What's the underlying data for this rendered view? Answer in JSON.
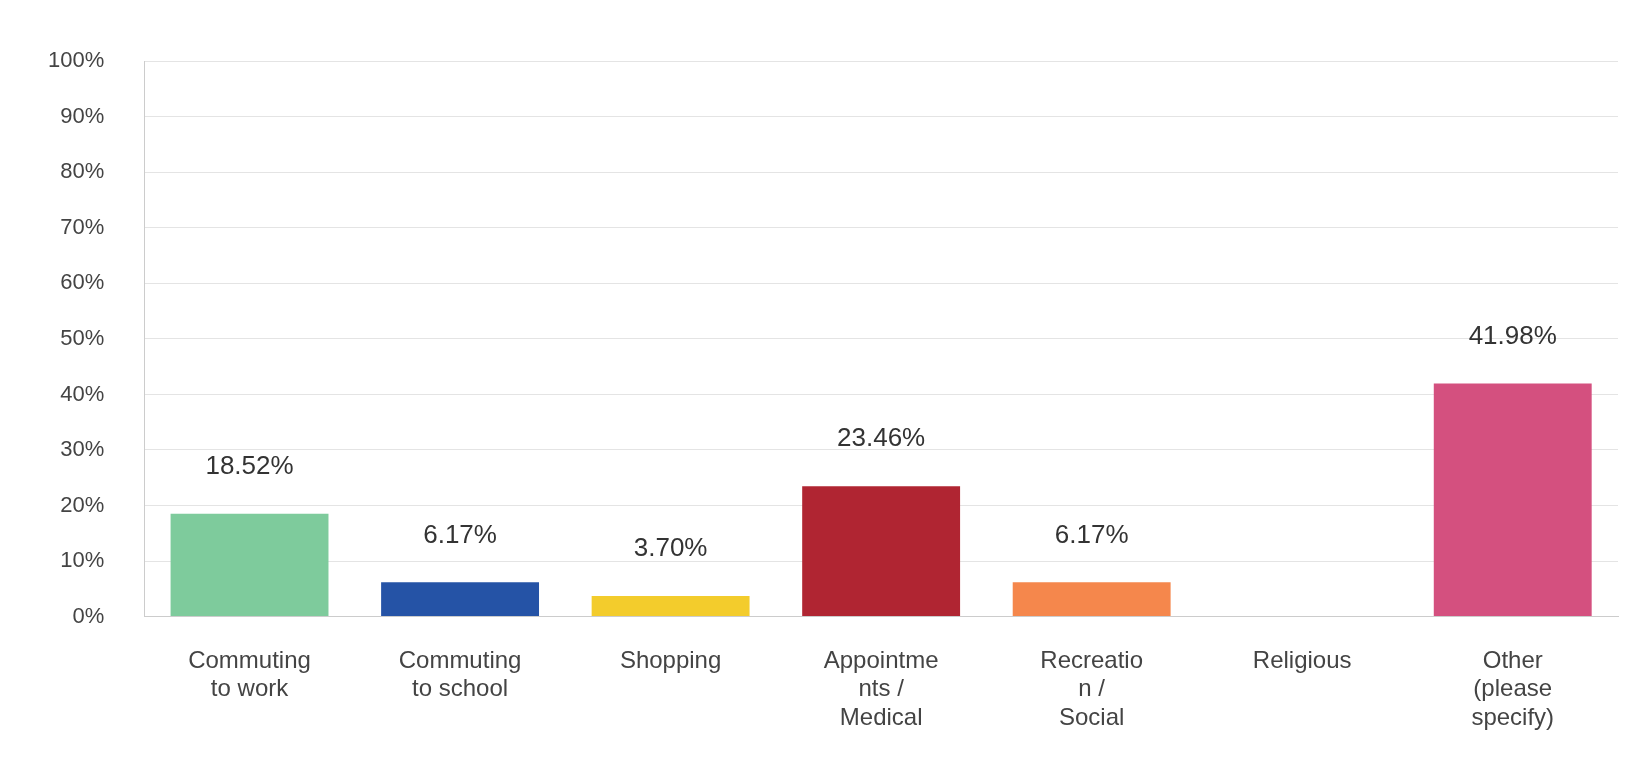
{
  "chart_data": {
    "type": "bar",
    "categories": [
      "Commuting to work",
      "Commuting to school",
      "Shopping",
      "Appointments / Medical",
      "Recreation / Social",
      "Religious",
      "Other (please specify)"
    ],
    "values": [
      18.52,
      6.17,
      3.7,
      23.46,
      6.17,
      0,
      41.98
    ],
    "colors": [
      "#7ecb9c",
      "#2553a6",
      "#f3cc2c",
      "#b02532",
      "#f5874c",
      "#9e9e9e",
      "#d4507f"
    ],
    "value_labels": [
      "18.52%",
      "6.17%",
      "3.70%",
      "23.46%",
      "6.17%",
      null,
      "41.98%"
    ],
    "ylim": [
      0,
      100
    ],
    "yticks": [
      {
        "value": 0,
        "label": "0%"
      },
      {
        "value": 10,
        "label": "10%"
      },
      {
        "value": 20,
        "label": "20%"
      },
      {
        "value": 30,
        "label": "30%"
      },
      {
        "value": 40,
        "label": "40%"
      },
      {
        "value": 50,
        "label": "50%"
      },
      {
        "value": 60,
        "label": "60%"
      },
      {
        "value": 70,
        "label": "70%"
      },
      {
        "value": 80,
        "label": "80%"
      },
      {
        "value": 90,
        "label": "90%"
      },
      {
        "value": 100,
        "label": "100%"
      }
    ],
    "grid": "y",
    "legend": false
  }
}
